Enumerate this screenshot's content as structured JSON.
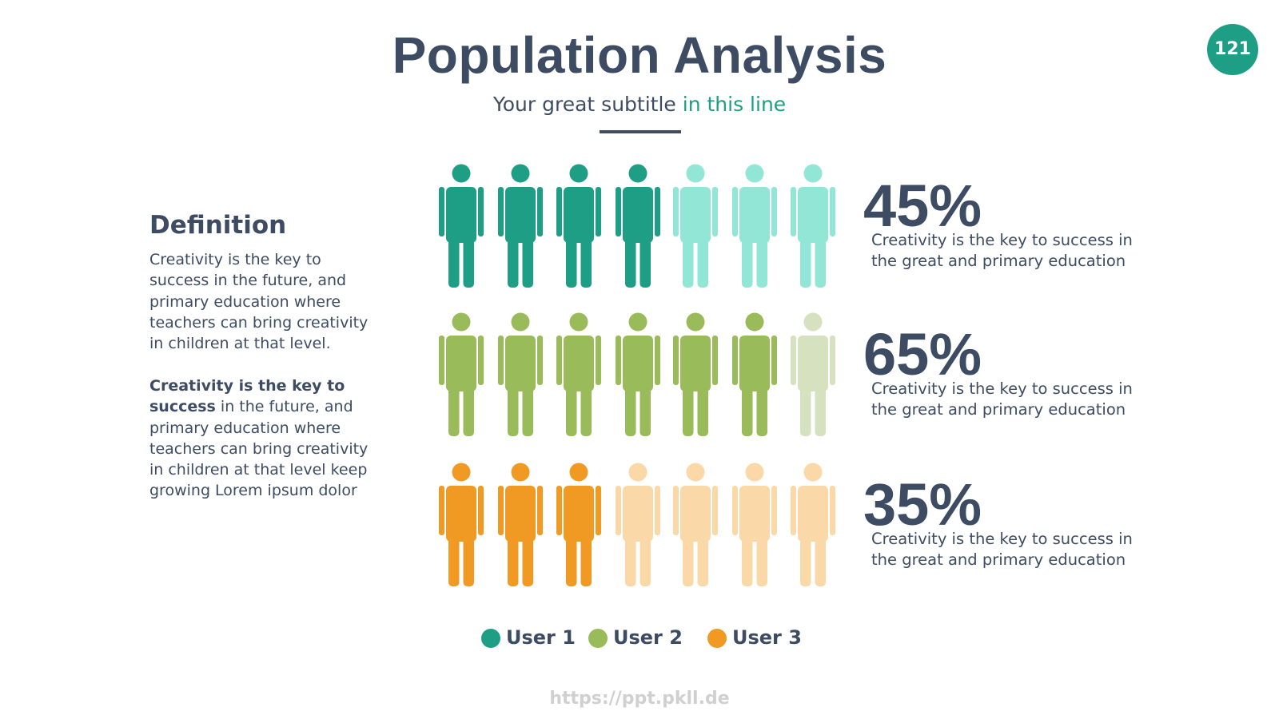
{
  "header": {
    "title": "Population Analysis",
    "subtitle": "Your great subtitle",
    "subtitle_accent": "in this line",
    "page_number": "121"
  },
  "definition": {
    "title": "Definition",
    "paragraph_1": "Creativity is the key to success in the future, and primary education where teachers can bring creativity in children at that level.",
    "paragraph_2_bold": "Creativity is the key to success",
    "paragraph_2": "in the future, and primary education where teachers can bring creativity in children at that level keep growing Lorem ipsum dolor"
  },
  "rows": [
    {
      "percent": "45%",
      "text": "Creativity is the key to success in the great and primary education",
      "filled": 4,
      "total": 7,
      "color": "#1e9e85",
      "light_color": "#92e6d6"
    },
    {
      "percent": "65%",
      "text": "Creativity is the key to success in the great and primary education",
      "filled": 6,
      "total": 7,
      "color": "#99bb5a",
      "light_color": "#d6e2bf"
    },
    {
      "percent": "35%",
      "text": "Creativity is the key to success in the great and primary education",
      "filled": 3,
      "total": 7,
      "color": "#f09a24",
      "light_color": "#fbd8a8"
    }
  ],
  "legend": [
    "User 1",
    "User 2",
    "User 3"
  ],
  "footer": "https://ppt.pkll.de"
}
